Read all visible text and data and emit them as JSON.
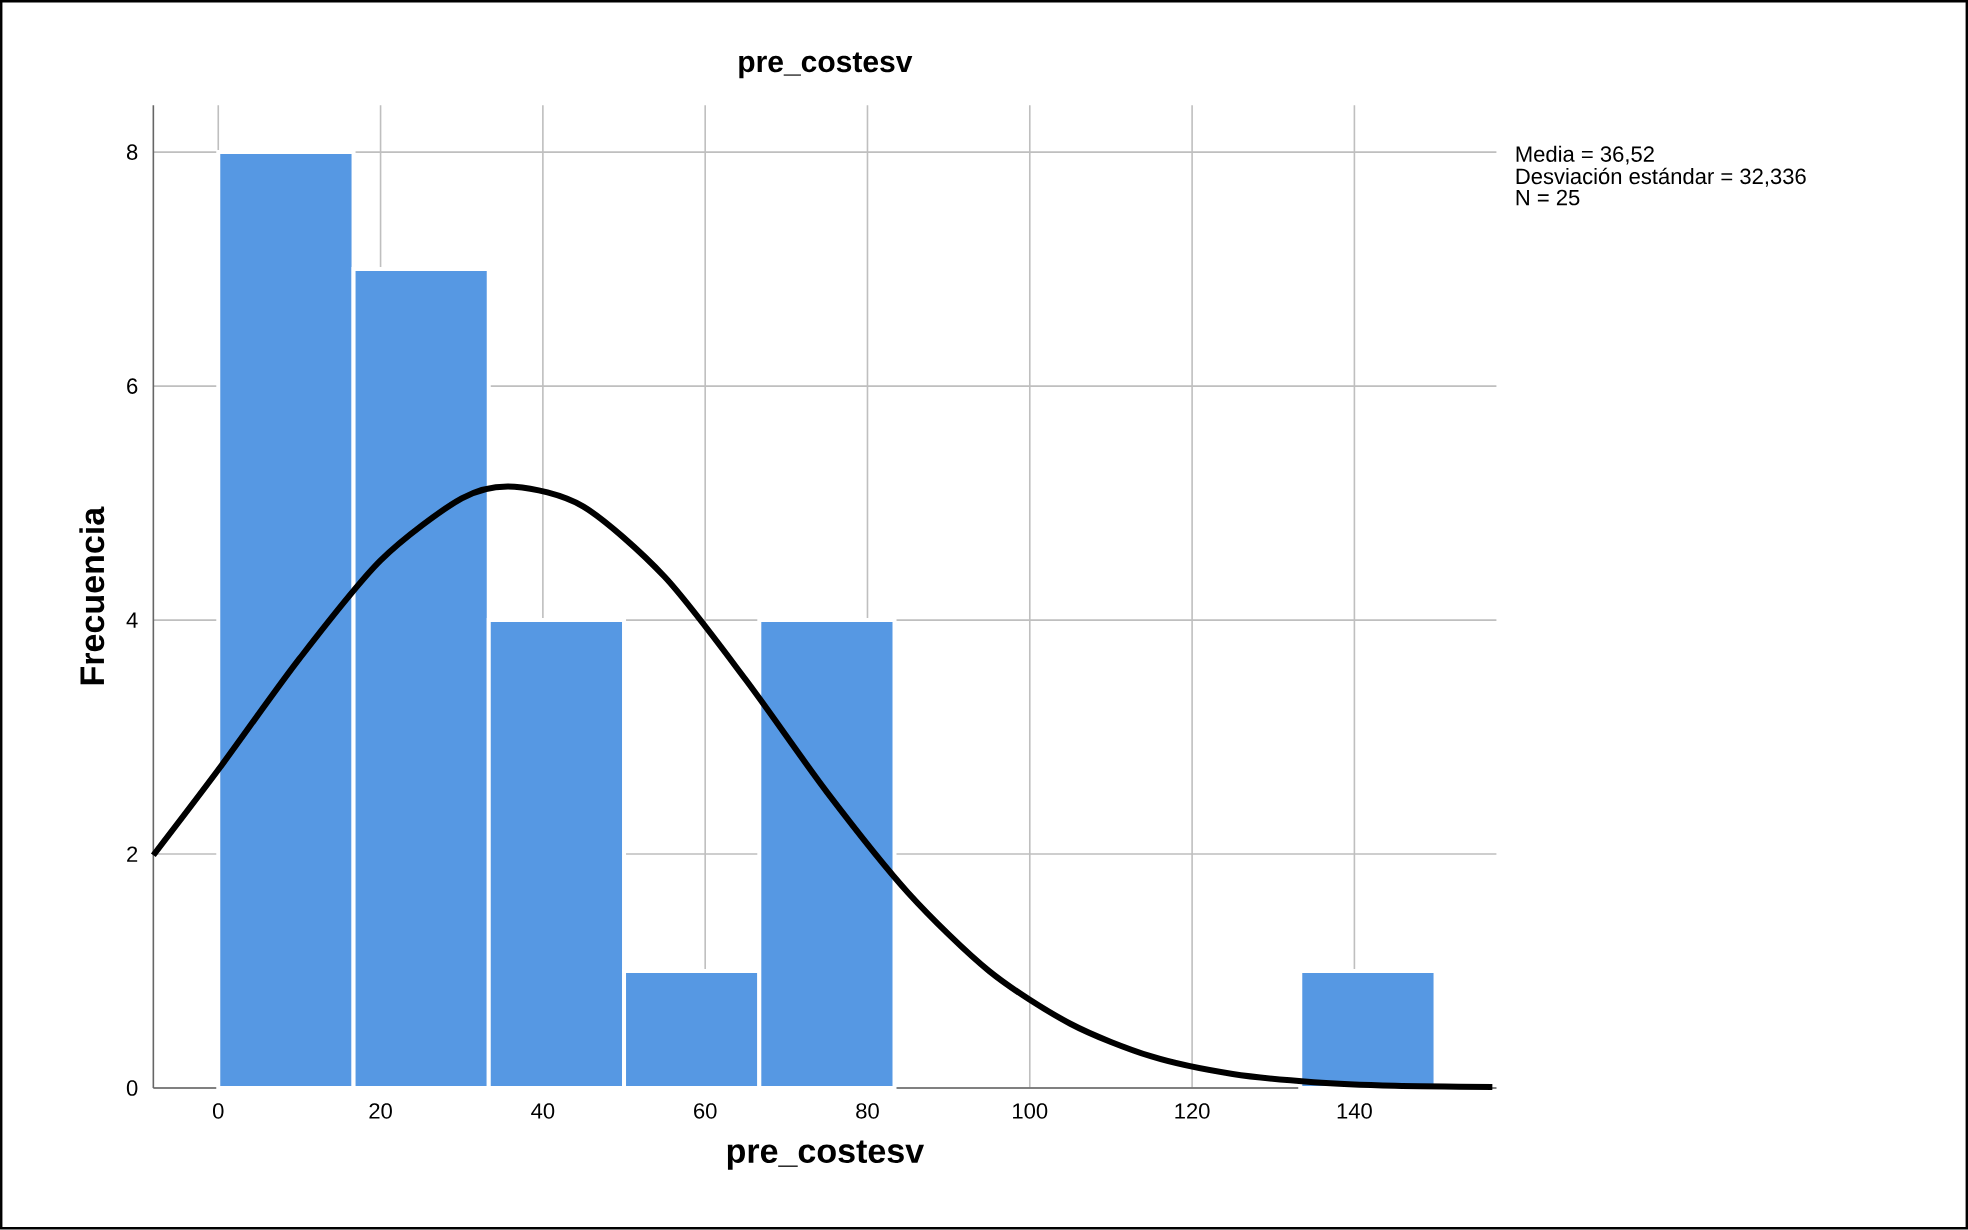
{
  "chart_data": {
    "type": "histogram",
    "title": "pre_costesv",
    "xlabel": "pre_costesv",
    "ylabel": "Frecuencia",
    "bins": [
      0,
      16.67,
      33.33,
      50,
      66.67,
      83.33,
      100,
      116.67,
      133.33,
      150
    ],
    "values": [
      8,
      7,
      4,
      1,
      4,
      0,
      0,
      0,
      1
    ],
    "color": "#5698e3",
    "series": [
      {
        "type": "line",
        "color": "#000000",
        "x": [
          -8,
          0,
          10,
          20,
          30,
          36.5,
          45,
          55,
          65,
          75,
          85,
          95,
          105,
          115,
          125,
          135,
          145,
          157
        ],
        "values": [
          1.99,
          2.72,
          3.67,
          4.51,
          5.04,
          5.14,
          4.97,
          4.37,
          3.49,
          2.53,
          1.67,
          1.0,
          0.55,
          0.27,
          0.12,
          0.05,
          0.02,
          0.01
        ]
      }
    ],
    "xlim": [
      -8,
      157.5
    ],
    "xticks": [
      0,
      20,
      40,
      60,
      80,
      100,
      120,
      140
    ],
    "ylim": [
      0,
      8.4
    ],
    "yticks": [
      0,
      2,
      4,
      6,
      8
    ],
    "grid": true,
    "annotations": [
      "Media = 36,52",
      "Desviación estándar = 32,336",
      "N = 25"
    ]
  }
}
